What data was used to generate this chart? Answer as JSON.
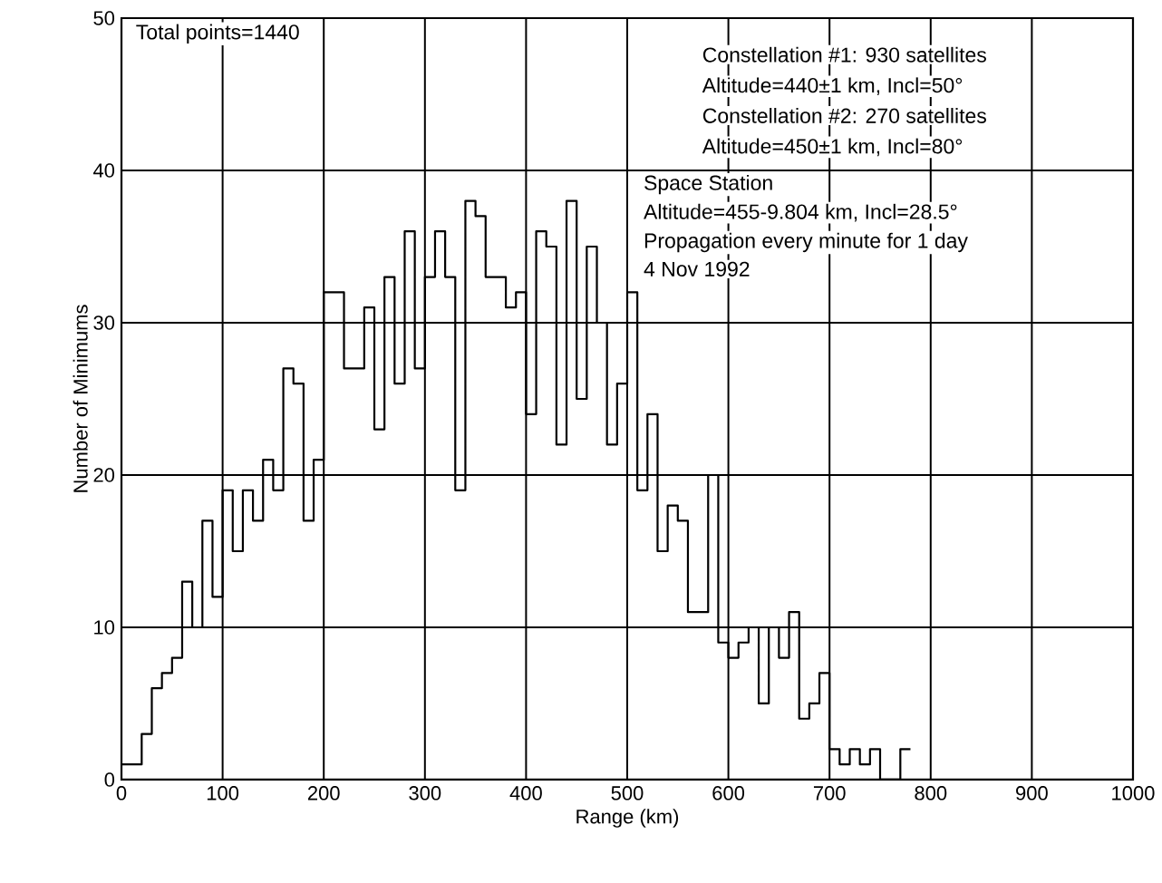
{
  "chart_data": {
    "type": "histogram",
    "xlabel": "Range (km)",
    "ylabel": "Number of Minimums",
    "bins": [
      0,
      10,
      20,
      30,
      40,
      50,
      60,
      70,
      80,
      90,
      100,
      110,
      120,
      130,
      140,
      150,
      160,
      170,
      180,
      190,
      200,
      210,
      220,
      230,
      240,
      250,
      260,
      270,
      280,
      290,
      300,
      310,
      320,
      330,
      340,
      350,
      360,
      370,
      380,
      390,
      400,
      410,
      420,
      430,
      440,
      450,
      460,
      470,
      480,
      490,
      500,
      510,
      520,
      530,
      540,
      550,
      560,
      570,
      580,
      590,
      600,
      610,
      620,
      630,
      640,
      650,
      660,
      670,
      680,
      690,
      700,
      710,
      720,
      730,
      740,
      750,
      760,
      770,
      780
    ],
    "values": [
      1,
      1,
      3,
      6,
      7,
      8,
      13,
      10,
      17,
      12,
      19,
      15,
      19,
      17,
      21,
      19,
      27,
      26,
      17,
      21,
      32,
      32,
      27,
      27,
      31,
      23,
      33,
      26,
      36,
      27,
      33,
      36,
      33,
      19,
      38,
      37,
      33,
      33,
      31,
      32,
      24,
      36,
      35,
      22,
      38,
      25,
      35,
      30,
      22,
      26,
      32,
      19,
      24,
      15,
      18,
      17,
      11,
      11,
      20,
      9,
      8,
      9,
      10,
      5,
      10,
      8,
      11,
      4,
      5,
      7,
      2,
      1,
      2,
      1,
      2,
      0,
      0,
      2
    ],
    "color": "#000000",
    "xlim": [
      0,
      1000
    ],
    "xticks": [
      0,
      100,
      200,
      300,
      400,
      500,
      600,
      700,
      800,
      900,
      1000
    ],
    "ylim": [
      0,
      50
    ],
    "yticks": [
      0,
      10,
      20,
      30,
      40,
      50
    ],
    "grid": true,
    "annotations": [
      "Total points=1440",
      "Constellation #1:  930 satellites",
      "Altitude=440±1 km, Incl=50°",
      "Constellation #2:  270 satellites",
      "Altitude=450±1 km, Incl=80°",
      "Space Station",
      "Altitude=455-9.804 km, Incl=28.5°",
      "Propagation every minute for 1 day",
      "4 Nov 1992"
    ]
  }
}
